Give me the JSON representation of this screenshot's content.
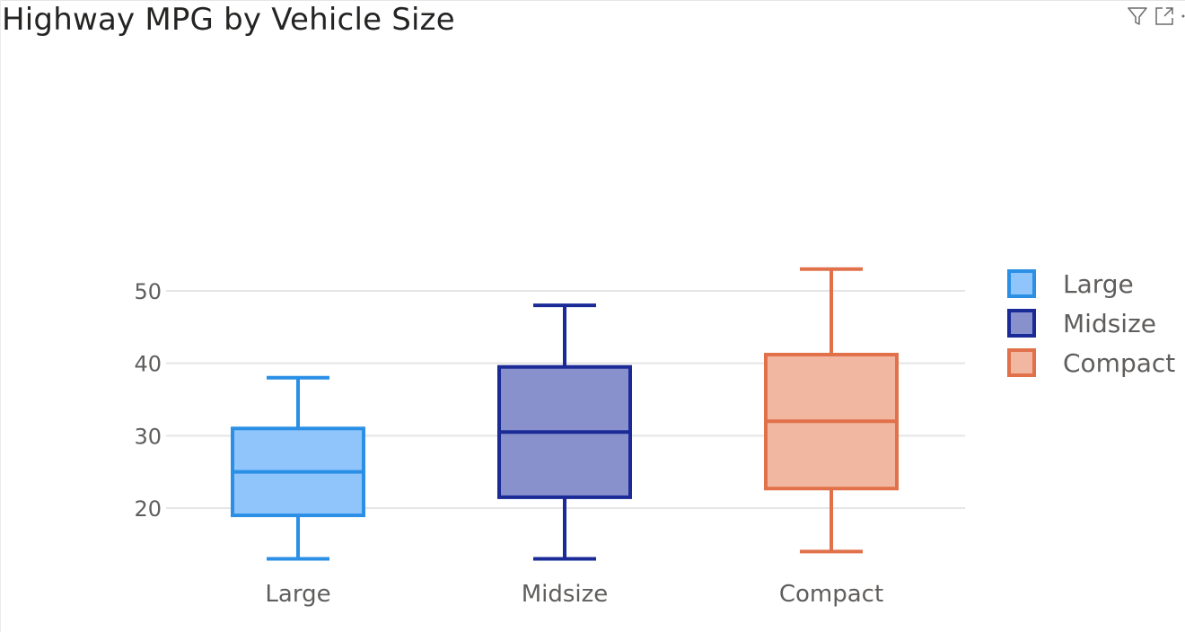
{
  "title": "Highway MPG by Vehicle Size",
  "header": {
    "icons": [
      "filter-icon",
      "focus-mode-icon",
      "more-options-icon"
    ]
  },
  "chart_data": {
    "type": "box",
    "title": "Highway MPG by Vehicle Size",
    "xlabel": "",
    "ylabel": "",
    "y_ticks": [
      20,
      30,
      40,
      50
    ],
    "ylim": [
      10,
      56
    ],
    "grid": true,
    "legend_position": "right",
    "categories": [
      "Large",
      "Midsize",
      "Compact"
    ],
    "series": [
      {
        "name": "Large",
        "min": 13,
        "q1": 19,
        "median": 25,
        "q3": 31,
        "max": 38,
        "color": "#2b8fe6",
        "fill": "#8fc5fb"
      },
      {
        "name": "Midsize",
        "min": 13,
        "q1": 21.5,
        "median": 30.5,
        "q3": 39.5,
        "max": 48,
        "color": "#1a2a96",
        "fill": "#8891cc"
      },
      {
        "name": "Compact",
        "min": 14,
        "q1": 22.7,
        "median": 32,
        "q3": 41.2,
        "max": 53,
        "color": "#e0714a",
        "fill": "#f2b7a0"
      }
    ]
  }
}
